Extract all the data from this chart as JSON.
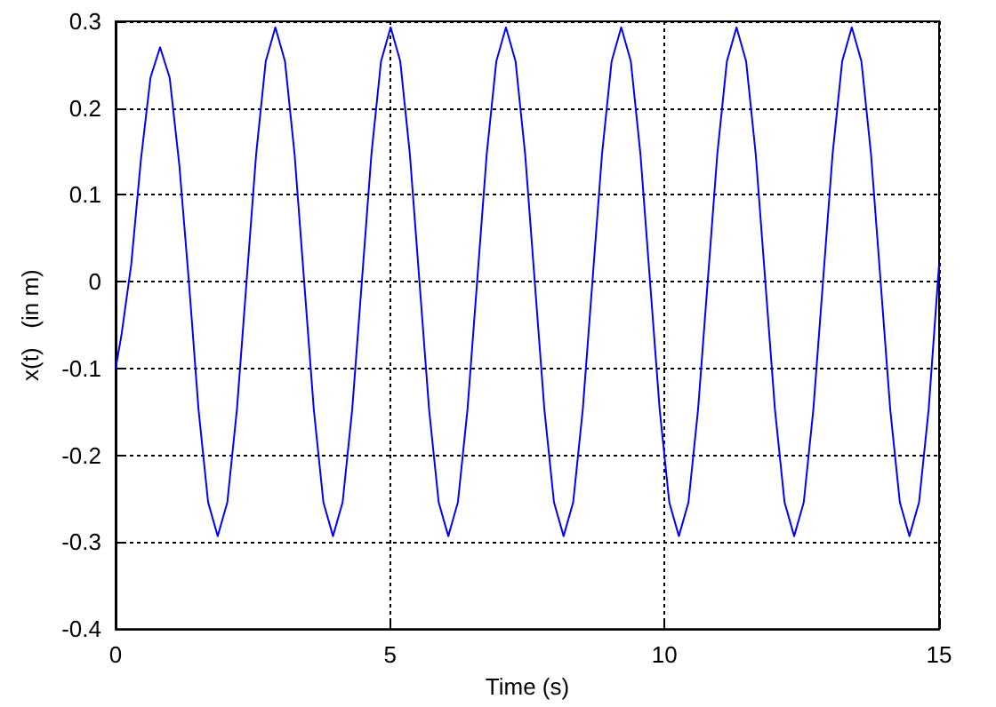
{
  "chart_data": {
    "type": "line",
    "xlabel": "Time (s)",
    "ylabel": "x(t)   (in m)",
    "xlim": [
      0,
      15
    ],
    "ylim": [
      -0.4,
      0.3
    ],
    "xticks": [
      0,
      5,
      10,
      15
    ],
    "yticks": [
      -0.4,
      -0.3,
      -0.2,
      -0.1,
      0,
      0.1,
      0.2,
      0.3
    ],
    "grid": true,
    "marker": "none",
    "line_style": "solid",
    "series": [
      {
        "color": "#0000ff",
        "x": [
          0,
          0.11,
          0.285,
          0.46,
          0.635,
          0.81,
          0.985,
          1.16,
          1.335,
          1.51,
          1.685,
          1.86,
          2.035,
          2.21,
          2.385,
          2.56,
          2.735,
          2.91,
          3.085,
          3.26,
          3.435,
          3.61,
          3.785,
          3.96,
          4.135,
          4.31,
          4.485,
          4.66,
          4.835,
          5.01,
          5.185,
          5.36,
          5.535,
          5.71,
          5.885,
          6.06,
          6.235,
          6.41,
          6.585,
          6.76,
          6.935,
          7.11,
          7.285,
          7.46,
          7.635,
          7.81,
          7.985,
          8.16,
          8.335,
          8.51,
          8.685,
          8.86,
          9.035,
          9.21,
          9.385,
          9.56,
          9.735,
          9.91,
          10.085,
          10.26,
          10.435,
          10.61,
          10.785,
          10.96,
          11.135,
          11.31,
          11.485,
          11.66,
          11.835,
          12.01,
          12.185,
          12.36,
          12.535,
          12.71,
          12.885,
          13.06,
          13.235,
          13.41,
          13.585,
          13.76,
          13.935,
          14.11,
          14.285,
          14.46,
          14.635,
          14.81,
          15
        ],
        "values": [
          -0.1,
          -0.06,
          0.02,
          0.14,
          0.235,
          0.27,
          0.235,
          0.135,
          0.0,
          -0.147,
          -0.254,
          -0.293,
          -0.254,
          -0.147,
          0,
          0.147,
          0.254,
          0.293,
          0.254,
          0.147,
          0,
          -0.147,
          -0.254,
          -0.293,
          -0.254,
          -0.147,
          0,
          0.147,
          0.254,
          0.293,
          0.254,
          0.147,
          0,
          -0.147,
          -0.254,
          -0.293,
          -0.254,
          -0.147,
          0,
          0.147,
          0.254,
          0.293,
          0.254,
          0.147,
          0,
          -0.147,
          -0.254,
          -0.293,
          -0.254,
          -0.147,
          0,
          0.147,
          0.254,
          0.293,
          0.254,
          0.147,
          0,
          -0.147,
          -0.254,
          -0.293,
          -0.254,
          -0.147,
          0,
          0.147,
          0.254,
          0.293,
          0.254,
          0.147,
          0,
          -0.147,
          -0.254,
          -0.293,
          -0.254,
          -0.147,
          0,
          0.147,
          0.254,
          0.293,
          0.254,
          0.147,
          0,
          -0.147,
          -0.254,
          -0.293,
          -0.254,
          -0.147,
          0.02
        ]
      }
    ]
  }
}
